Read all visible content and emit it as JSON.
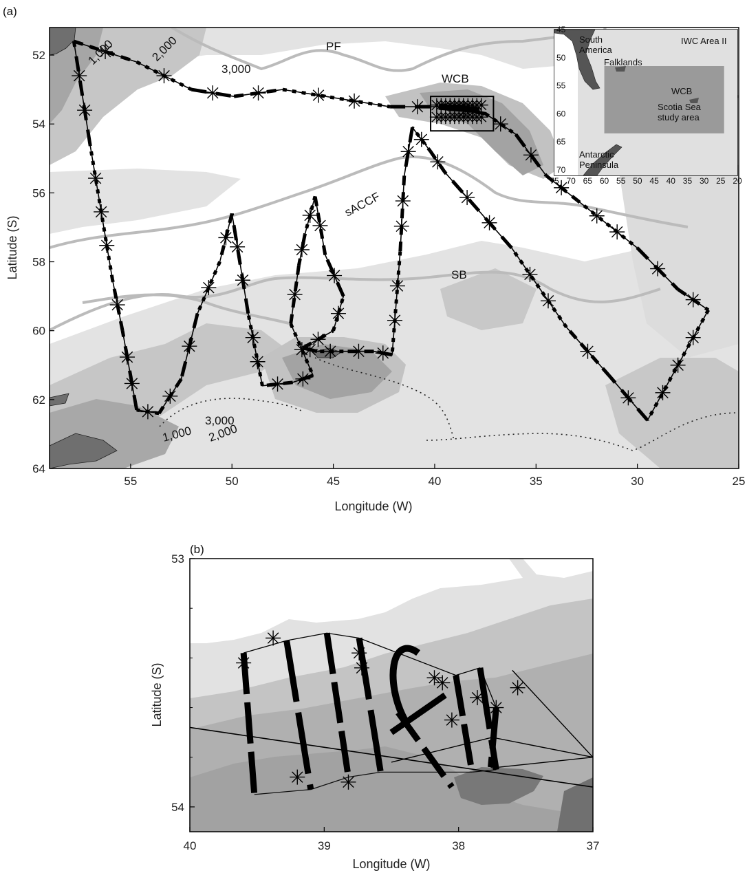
{
  "panel_a": {
    "label": "(a)",
    "xlabel": "Longitude (W)",
    "ylabel": "Latitude (S)",
    "xticks": [
      "55",
      "50",
      "45",
      "40",
      "35",
      "30",
      "25"
    ],
    "yticks": [
      "52",
      "54",
      "56",
      "58",
      "60",
      "62",
      "64"
    ],
    "front_labels": {
      "pf": "PF",
      "saccf": "sACCF",
      "sb": "SB"
    },
    "box_label": "WCB",
    "contour_labels": {
      "c1000_n": "1,000",
      "c2000_n": "2,000",
      "c3000_n": "3,000",
      "c3000_s": "3,000",
      "c1000_s": "1,000",
      "c2000_s": "2,000"
    }
  },
  "inset": {
    "labels": {
      "south_america": "South\nAmerica",
      "iwc": "IWC Area II",
      "falklands": "Falklands",
      "wcb": "WCB",
      "study_area": "Scotia Sea\nstudy area",
      "peninsula": "Antarctic\nPeninsula"
    },
    "xticks": [
      "75",
      "70",
      "65",
      "60",
      "55",
      "50",
      "45",
      "40",
      "35",
      "30",
      "25",
      "20"
    ],
    "yticks": [
      "45",
      "50",
      "55",
      "60",
      "65",
      "70"
    ]
  },
  "panel_b": {
    "label": "(b)",
    "xlabel": "Longitude (W)",
    "ylabel": "Latitude (S)",
    "xticks": [
      "40",
      "39",
      "38",
      "37"
    ],
    "yticks": [
      "53",
      "54"
    ]
  },
  "colors": {
    "land": "#777777",
    "deep": "#ffffff",
    "bathy1": "#dddddd",
    "bathy2": "#c2c2c2",
    "bathy3": "#a8a8a8",
    "bathy4": "#8f8f8f",
    "fronts": "#bbbbbb",
    "track": "#000000"
  },
  "chart_data": {
    "type": "map",
    "panel_a": {
      "xlim": [
        59,
        25
      ],
      "ylim": [
        64,
        51.2
      ],
      "track": [
        [
          57.8,
          51.6
        ],
        [
          54.7,
          52.2
        ],
        [
          52,
          53
        ],
        [
          49.9,
          53.2
        ],
        [
          47.5,
          53
        ],
        [
          42.2,
          53.5
        ],
        [
          39.5,
          53.5
        ],
        [
          37.5,
          53.7
        ],
        [
          36,
          54.3
        ],
        [
          34.5,
          55.5
        ],
        [
          33,
          56.2
        ],
        [
          30,
          57.6
        ],
        [
          28,
          58.8
        ],
        [
          26.5,
          59.4
        ],
        [
          29.5,
          62.6
        ],
        [
          31.4,
          61.3
        ],
        [
          33.5,
          59.9
        ],
        [
          36.2,
          57.6
        ],
        [
          39.5,
          55.4
        ],
        [
          40.2,
          54.8
        ],
        [
          41.1,
          54.1
        ],
        [
          41.5,
          55.5
        ],
        [
          41.7,
          57.7
        ],
        [
          42.1,
          60.7
        ],
        [
          43,
          60.6
        ],
        [
          44.5,
          60.6
        ],
        [
          45.8,
          60.6
        ],
        [
          46.5,
          60.5
        ],
        [
          45,
          60
        ],
        [
          44.5,
          59
        ],
        [
          45.4,
          57.8
        ],
        [
          45.9,
          56.1
        ],
        [
          46.4,
          57.2
        ],
        [
          46.7,
          58.1
        ],
        [
          47.1,
          59.8
        ],
        [
          46,
          61.3
        ],
        [
          47,
          61.5
        ],
        [
          48.5,
          61.6
        ],
        [
          49.2,
          59.5
        ],
        [
          50,
          56.6
        ],
        [
          50.6,
          58
        ],
        [
          51.7,
          59.5
        ],
        [
          52.5,
          61.4
        ],
        [
          53.6,
          62.4
        ],
        [
          54.7,
          62.3
        ],
        [
          55.4,
          60
        ],
        [
          55.9,
          58.5
        ],
        [
          57,
          54.6
        ],
        [
          57.8,
          51.6
        ]
      ],
      "wcb_box": {
        "lon": [
          40.2,
          37.1
        ],
        "lat": [
          53.2,
          54.2
        ]
      }
    },
    "inset": {
      "xlim": [
        75,
        20
      ],
      "ylim": [
        71,
        45
      ],
      "study_box": {
        "lon": [
          60,
          24
        ],
        "lat": [
          51.5,
          63.5
        ]
      }
    },
    "panel_b": {
      "xlim": [
        40,
        37
      ],
      "ylim": [
        54.1,
        53
      ],
      "transects": [
        [
          [
            39.6,
            53.38
          ],
          [
            39.52,
            53.95
          ]
        ],
        [
          [
            39.28,
            53.33
          ],
          [
            39.1,
            53.93
          ]
        ],
        [
          [
            38.98,
            53.3
          ],
          [
            38.82,
            53.88
          ]
        ],
        [
          [
            38.74,
            53.32
          ],
          [
            38.58,
            53.86
          ]
        ],
        [
          [
            38.02,
            53.47
          ],
          [
            37.9,
            53.86
          ]
        ],
        [
          [
            37.84,
            53.44
          ],
          [
            37.72,
            53.85
          ]
        ],
        [
          [
            37.72,
            53.6
          ],
          [
            37.76,
            53.84
          ]
        ]
      ]
    }
  }
}
